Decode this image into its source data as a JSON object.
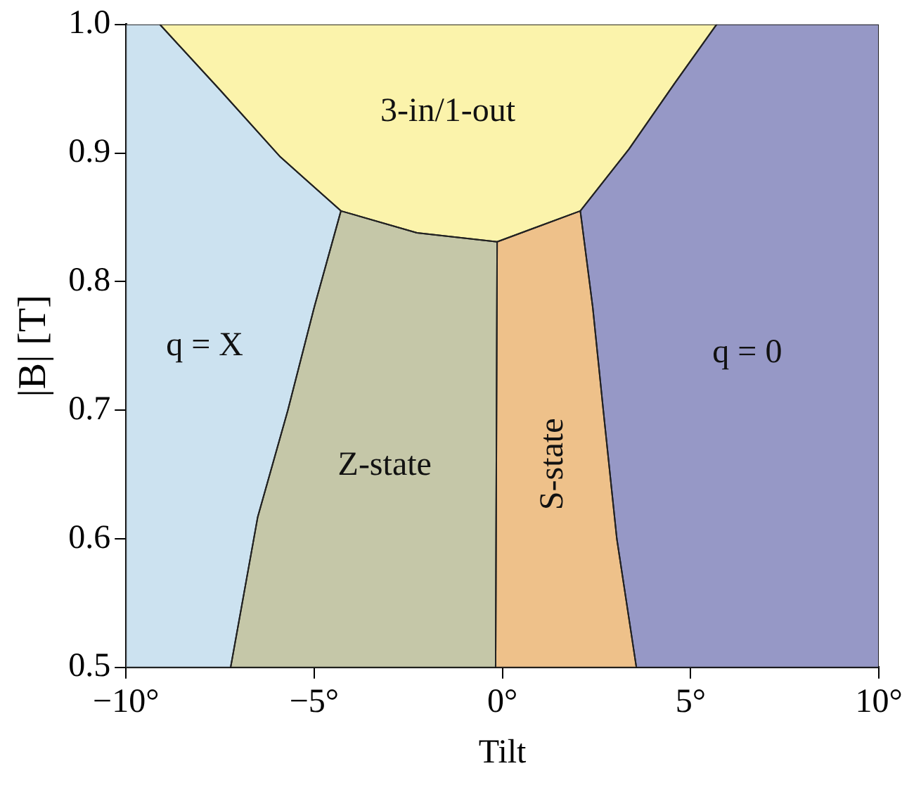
{
  "chart_data": {
    "type": "area",
    "xlabel": "Tilt",
    "ylabel": "|B| [T]",
    "xlim": [
      -10,
      10
    ],
    "ylim": [
      0.5,
      1
    ],
    "xticks": [
      {
        "value": -10,
        "label": "−10°"
      },
      {
        "value": -5,
        "label": "−5°"
      },
      {
        "value": 0,
        "label": "0°"
      },
      {
        "value": 5,
        "label": "5°"
      },
      {
        "value": 10,
        "label": "10°"
      }
    ],
    "yticks": [
      0.5,
      0.6,
      0.7,
      0.8,
      0.9,
      {
        "value": 1,
        "label": "1.0"
      }
    ],
    "grid": false,
    "legend": false,
    "series": [
      {
        "name": "q = X",
        "color": "#cce2f0",
        "x": [
          -10,
          -9.1,
          -7.5,
          -5.9,
          -4.29,
          -5.0,
          -5.7,
          -6.5,
          -7.22,
          -10
        ],
        "values": [
          1,
          1,
          0.949,
          0.897,
          0.855,
          0.78,
          0.7,
          0.617,
          0.5,
          0.5
        ]
      },
      {
        "name": "3-in/1-out",
        "color": "#fbf3ab",
        "x": [
          -9.1,
          5.69,
          4.57,
          3.36,
          2.07,
          -0.14,
          -2.27,
          -4.29,
          -5.9,
          -7.5
        ],
        "values": [
          1,
          1,
          0.954,
          0.903,
          0.855,
          0.831,
          0.838,
          0.855,
          0.897,
          0.949
        ]
      },
      {
        "name": "Z-state",
        "color": "#c5c7a8",
        "x": [
          -4.29,
          -2.27,
          -0.14,
          -0.18,
          -7.22,
          -6.5,
          -5.7,
          -5.0
        ],
        "values": [
          0.855,
          0.838,
          0.831,
          0.5,
          0.5,
          0.617,
          0.7,
          0.78
        ]
      },
      {
        "name": "S-state",
        "color": "#eec18a",
        "x": [
          -0.14,
          2.07,
          2.4,
          2.68,
          3.04,
          3.56,
          -0.18
        ],
        "values": [
          0.831,
          0.855,
          0.78,
          0.7,
          0.6,
          0.5,
          0.5
        ]
      },
      {
        "name": "q = 0",
        "color": "#9698c6",
        "x": [
          5.69,
          10,
          10,
          3.56,
          3.04,
          2.68,
          2.4,
          2.07,
          3.36,
          4.57
        ],
        "values": [
          1,
          1,
          0.5,
          0.5,
          0.6,
          0.7,
          0.78,
          0.855,
          0.903,
          0.954
        ]
      }
    ]
  }
}
